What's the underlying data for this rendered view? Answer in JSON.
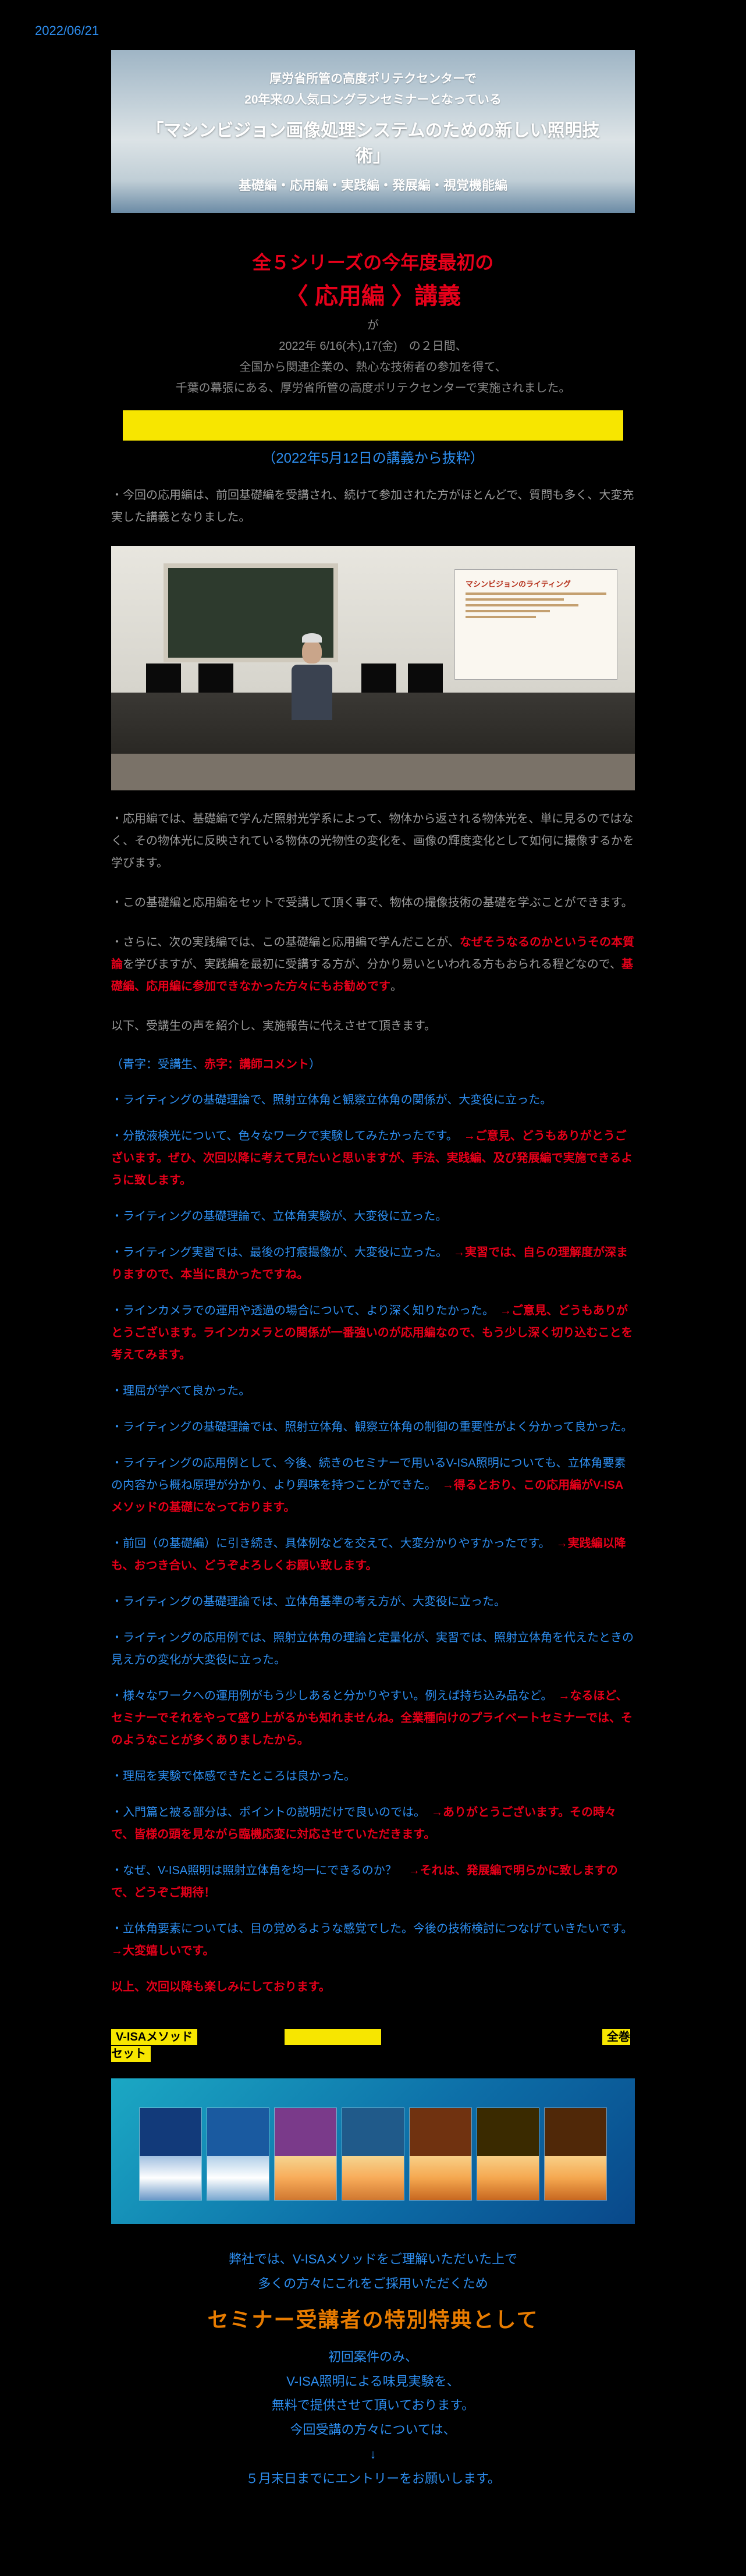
{
  "date": "2022/06/21",
  "banner": {
    "line1": "厚労省所管の高度ポリテクセンターで",
    "line2": "20年来の人気ロングランセミナーとなっている",
    "line3": "「マシンビジョン画像処理システムのための新しい照明技術」",
    "line4": "基礎編・応用編・実践編・発展編・視覚機能編"
  },
  "intro": {
    "red1": "全５シリーズの今年度最初の",
    "red2": "〈 応用編 〉講義",
    "ga": "が",
    "g1": "2022年 6/16(木),17(金)　の２日間、",
    "g2": "全国から関連企業の、熱心な技術者の参加を得て、",
    "g3": "千葉の幕張にある、厚労省所管の高度ポリテクセンターで実施されました。"
  },
  "paren": "（2022年5月12日の講義から抜粋）",
  "p1": "・今回の応用編は、前回基礎編を受講され、続けて参加された方がほとんどで、質問も多く、大変充実した講義となりました。",
  "p2": "・応用編では、基礎編で学んだ照射光学系によって、物体から返される物体光を、単に見るのではなく、その物体光に反映されている物体の光物性の変化を、画像の輝度変化として如何に撮像するかを学びます。",
  "p3": "・この基礎編と応用編をセットで受講して頂く事で、物体の撮像技術の基礎を学ぶことができます。",
  "p4a": "・さらに、次の実践編では、この基礎編と応用編で学んだことが、",
  "p4b": "なぜそうなるのかというその本質論",
  "p4c": "を学びますが、実践編を最初に受講する方が、分かり易いといわれる方もおられる程どなので、",
  "p4d": "基礎編、応用編に参加できなかった方々にもお勧めです",
  "p4e": "。",
  "p5": "以下、受講生の声を紹介し、実施報告に代えさせて頂きます。",
  "note": {
    "a": "（",
    "b": "青字：受講生",
    "c": "、",
    "d": "赤字：講師コメント",
    "e": "）"
  },
  "bul": [
    {
      "b": "・ライティングの基礎理論で、照射立体角と観察立体角の関係が、大変役に立った。",
      "r": ""
    },
    {
      "b": "・分散液検光について、色々なワークで実験してみたかったです。　",
      "r": "→ご意見、どうもありがとうございます。ぜひ、次回以降に考えて見たいと思いますが、手法、実践編、及び発展編で実施できるように致します。"
    },
    {
      "b": "・ライティングの基礎理論で、立体角実験が、大変役に立った。",
      "r": ""
    },
    {
      "b": "・ライティング実習では、最後の打痕撮像が、大変役に立った。　",
      "r": "→実習では、自らの理解度が深まりますので、本当に良かったですね。"
    },
    {
      "b": "・ラインカメラでの運用や透過の場合について、より深く知りたかった。　",
      "r": "→ご意見、どうもありがとうございます。ラインカメラとの関係が一番強いのが応用編なので、もう少し深く切り込むことを考えてみます。"
    },
    {
      "b": "・理屈が学べて良かった。",
      "r": ""
    },
    {
      "b": "・ライティングの基礎理論では、照射立体角、観察立体角の制御の重要性がよく分かって良かった。",
      "r": ""
    },
    {
      "b": "・ライティングの応用例として、今後、続きのセミナーで用いるV-ISA照明についても、立体角要素の内容から概ね原理が分かり、より興味を持つことができた。　",
      "r": "→得るとおり、この応用編がV-ISAメソッドの基礎になっております。"
    },
    {
      "b": "・前回（の基礎編）に引き続き、具体例などを交えて、大変分かりやすかったです。　",
      "r": "→実践編以降も、おつき合い、どうぞよろしくお願い致します。"
    },
    {
      "b": "・ライティングの基礎理論では、立体角基準の考え方が、大変役に立った。",
      "r": ""
    },
    {
      "b": "・ライティングの応用例では、照射立体角の理論と定量化が、実習では、照射立体角を代えたときの見え方の変化が大変役に立った。",
      "r": ""
    },
    {
      "b": "・様々なワークへの運用例がもう少しあると分かりやすい。例えば持ち込み品など。　",
      "r": "→なるほど、セミナーでそれをやって盛り上がるかも知れませんね。全業種向けのプライベートセミナーでは、そのようなことが多くありましたから。"
    },
    {
      "b": "・理屈を実験で体感できたところは良かった。",
      "r": ""
    },
    {
      "b": "・入門篇と被る部分は、ポイントの説明だけで良いのでは。　",
      "r": "→ありがとうございます。その時々で、皆様の頭を見ながら臨機応変に対応させていただきます。"
    },
    {
      "b": "・なぜ、V-ISA照明は照射立体角を均一にできるのか？　",
      "r": "→それは、発展編で明らかに致しますので、どうぞご期待！"
    },
    {
      "b": "・立体角要素については、目の覚めるような感覚でした。今後の技術検討につなげていきたいです。　",
      "r": "→大変嬉しいです。"
    }
  ],
  "closing": "以上、次回以降も楽しみにしております。",
  "yr": {
    "a": "V-ISAメソッド",
    "b": "全巻セット"
  },
  "promo": {
    "l1": "弊社では、V-ISAメソッドをご理解いただいた上で",
    "l2": "多くの方々にこれをご採用いただくため",
    "ttl": "セミナー受講者の特別特典として",
    "l3": "初回案件のみ、",
    "l4": "V-ISA照明による味見実験を、",
    "l5": "無料で提供させて頂いております。",
    "l6": "今回受講の方々については、",
    "l7": "↓",
    "l8": "５月末日までにエントリーをお願いします。"
  },
  "screen": {
    "title": "マシンビジョンのライティング"
  }
}
